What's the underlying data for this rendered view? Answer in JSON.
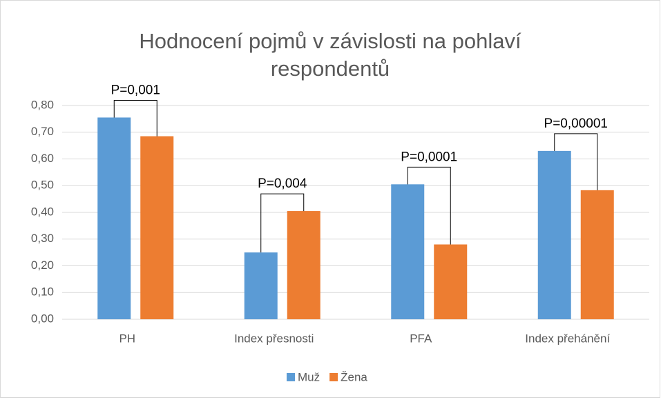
{
  "chart_data": {
    "type": "bar",
    "title": [
      "Hodnocení pojmů v závislosti na pohlaví",
      "respondentů"
    ],
    "categories": [
      "PH",
      "Index přesnosti",
      "PFA",
      "Index přehánění"
    ],
    "series": [
      {
        "name": "Muž",
        "color": "#5b9bd5",
        "values": [
          0.755,
          0.25,
          0.505,
          0.63
        ]
      },
      {
        "name": "Žena",
        "color": "#ed7d31",
        "values": [
          0.685,
          0.405,
          0.28,
          0.483
        ]
      }
    ],
    "annotations": [
      "P=0,001",
      "P=0,004",
      "P=0,0001",
      "P=0,00001"
    ],
    "ylim": [
      0,
      0.8
    ],
    "yticks": [
      {
        "value": 0,
        "label": "0,00"
      },
      {
        "value": 0.1,
        "label": "0,10"
      },
      {
        "value": 0.2,
        "label": "0,20"
      },
      {
        "value": 0.3,
        "label": "0,30"
      },
      {
        "value": 0.4,
        "label": "0,40"
      },
      {
        "value": 0.5,
        "label": "0,50"
      },
      {
        "value": 0.6,
        "label": "0,60"
      },
      {
        "value": 0.7,
        "label": "0,70"
      },
      {
        "value": 0.8,
        "label": "0,80"
      }
    ],
    "grid": true,
    "legend": "bottom"
  }
}
